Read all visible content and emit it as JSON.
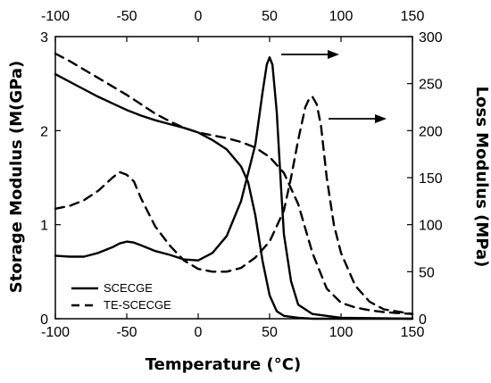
{
  "chart_data": {
    "type": "line",
    "xlabel": "Temperature (°C)",
    "ylabel_left": "Storage Modulus (M(GPa)",
    "ylabel_right": "Loss Modulus (MPa)",
    "xlim": [
      -100,
      150
    ],
    "ylim_left": [
      0,
      3
    ],
    "ylim_right": [
      0,
      300
    ],
    "x_ticks": [
      "-100",
      "-50",
      "0",
      "50",
      "100",
      "150"
    ],
    "top_x_ticks": [
      "-100",
      "-50",
      "0",
      "50",
      "100",
      "150"
    ],
    "y_left_ticks": [
      "0",
      "1",
      "2",
      "3"
    ],
    "y_right_ticks": [
      "0",
      "50",
      "100",
      "150",
      "200",
      "250",
      "300"
    ],
    "grid": false,
    "legend_placement": "lower-left",
    "legend": [
      {
        "name": "SCECGE",
        "style": "solid"
      },
      {
        "name": "TE-SCECGE",
        "style": "dashed"
      }
    ],
    "arrows_point_to": "right-axis",
    "series": [
      {
        "name": "SCECGE storage modulus",
        "axis": "left",
        "style": "solid",
        "points": [
          [
            -100,
            2.6
          ],
          [
            -90,
            2.52
          ],
          [
            -80,
            2.44
          ],
          [
            -70,
            2.36
          ],
          [
            -60,
            2.29
          ],
          [
            -50,
            2.22
          ],
          [
            -40,
            2.16
          ],
          [
            -30,
            2.11
          ],
          [
            -20,
            2.07
          ],
          [
            -10,
            2.03
          ],
          [
            0,
            1.98
          ],
          [
            10,
            1.9
          ],
          [
            20,
            1.8
          ],
          [
            30,
            1.62
          ],
          [
            35,
            1.45
          ],
          [
            40,
            1.1
          ],
          [
            45,
            0.62
          ],
          [
            50,
            0.25
          ],
          [
            55,
            0.08
          ],
          [
            60,
            0.03
          ],
          [
            70,
            0.01
          ],
          [
            80,
            0.0
          ],
          [
            100,
            0.0
          ],
          [
            150,
            0.0
          ]
        ]
      },
      {
        "name": "SCECGE loss modulus",
        "axis": "right",
        "style": "solid",
        "points": [
          [
            -100,
            67
          ],
          [
            -90,
            66
          ],
          [
            -80,
            66
          ],
          [
            -70,
            70
          ],
          [
            -60,
            76
          ],
          [
            -55,
            80
          ],
          [
            -50,
            82
          ],
          [
            -45,
            81
          ],
          [
            -40,
            78
          ],
          [
            -30,
            72
          ],
          [
            -20,
            68
          ],
          [
            -10,
            63
          ],
          [
            0,
            62
          ],
          [
            10,
            70
          ],
          [
            20,
            88
          ],
          [
            30,
            125
          ],
          [
            35,
            155
          ],
          [
            40,
            185
          ],
          [
            45,
            240
          ],
          [
            48,
            270
          ],
          [
            50,
            278
          ],
          [
            52,
            270
          ],
          [
            55,
            220
          ],
          [
            58,
            140
          ],
          [
            60,
            90
          ],
          [
            65,
            40
          ],
          [
            70,
            15
          ],
          [
            80,
            5
          ],
          [
            100,
            1
          ],
          [
            150,
            0
          ]
        ]
      },
      {
        "name": "TE-SCECGE storage modulus",
        "axis": "left",
        "style": "dashed",
        "points": [
          [
            -100,
            2.82
          ],
          [
            -90,
            2.74
          ],
          [
            -80,
            2.65
          ],
          [
            -70,
            2.56
          ],
          [
            -60,
            2.47
          ],
          [
            -50,
            2.38
          ],
          [
            -40,
            2.28
          ],
          [
            -30,
            2.18
          ],
          [
            -20,
            2.1
          ],
          [
            -10,
            2.03
          ],
          [
            0,
            1.98
          ],
          [
            10,
            1.95
          ],
          [
            20,
            1.92
          ],
          [
            30,
            1.88
          ],
          [
            40,
            1.82
          ],
          [
            50,
            1.72
          ],
          [
            60,
            1.55
          ],
          [
            70,
            1.22
          ],
          [
            80,
            0.7
          ],
          [
            90,
            0.32
          ],
          [
            100,
            0.17
          ],
          [
            110,
            0.12
          ],
          [
            120,
            0.09
          ],
          [
            130,
            0.07
          ],
          [
            140,
            0.06
          ],
          [
            150,
            0.05
          ]
        ]
      },
      {
        "name": "TE-SCECGE loss modulus",
        "axis": "right",
        "style": "dashed",
        "points": [
          [
            -100,
            117
          ],
          [
            -90,
            120
          ],
          [
            -80,
            126
          ],
          [
            -70,
            136
          ],
          [
            -60,
            150
          ],
          [
            -55,
            156
          ],
          [
            -50,
            153
          ],
          [
            -45,
            146
          ],
          [
            -40,
            128
          ],
          [
            -30,
            98
          ],
          [
            -20,
            78
          ],
          [
            -10,
            62
          ],
          [
            0,
            53
          ],
          [
            10,
            50
          ],
          [
            20,
            50
          ],
          [
            30,
            54
          ],
          [
            40,
            65
          ],
          [
            50,
            82
          ],
          [
            60,
            115
          ],
          [
            65,
            150
          ],
          [
            70,
            190
          ],
          [
            75,
            225
          ],
          [
            78,
            235
          ],
          [
            80,
            236
          ],
          [
            83,
            228
          ],
          [
            86,
            205
          ],
          [
            90,
            150
          ],
          [
            95,
            100
          ],
          [
            100,
            70
          ],
          [
            110,
            35
          ],
          [
            120,
            18
          ],
          [
            130,
            10
          ],
          [
            150,
            5
          ]
        ]
      }
    ]
  }
}
